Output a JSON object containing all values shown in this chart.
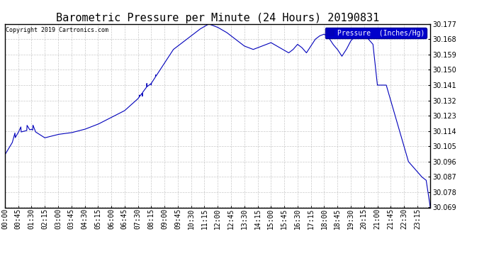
{
  "title": "Barometric Pressure per Minute (24 Hours) 20190831",
  "copyright_text": "Copyright 2019 Cartronics.com",
  "legend_label": "Pressure  (Inches/Hg)",
  "line_color": "#0000bb",
  "background_color": "#ffffff",
  "plot_bg_color": "#ffffff",
  "ylim": [
    30.069,
    30.177
  ],
  "yticks": [
    30.069,
    30.078,
    30.087,
    30.096,
    30.105,
    30.114,
    30.123,
    30.132,
    30.141,
    30.15,
    30.159,
    30.168,
    30.177
  ],
  "grid_color": "#bbbbbb",
  "title_fontsize": 11,
  "tick_fontsize": 7,
  "xtick_labels": [
    "00:00",
    "00:45",
    "01:30",
    "02:15",
    "03:00",
    "03:45",
    "04:30",
    "05:15",
    "06:00",
    "06:45",
    "07:30",
    "08:15",
    "09:00",
    "09:45",
    "10:30",
    "11:15",
    "12:00",
    "12:45",
    "13:30",
    "14:15",
    "15:00",
    "15:45",
    "16:30",
    "17:15",
    "18:00",
    "18:45",
    "19:30",
    "20:15",
    "21:00",
    "21:45",
    "22:30",
    "23:15"
  ],
  "keyframe_minutes": [
    0,
    45,
    90,
    135,
    180,
    225,
    270,
    315,
    360,
    405,
    450,
    480,
    495,
    510,
    525,
    540,
    555,
    570,
    600,
    630,
    660,
    690,
    720,
    750,
    765,
    780,
    810,
    840,
    870,
    900,
    930,
    960,
    975,
    990,
    1005,
    1020,
    1035,
    1050,
    1065,
    1080,
    1095,
    1110,
    1125,
    1140,
    1155,
    1170,
    1185,
    1200,
    1215,
    1230,
    1245,
    1260,
    1275,
    1290,
    1305,
    1320,
    1335,
    1350,
    1365,
    1380,
    1395,
    1410,
    1425,
    1439
  ],
  "keyframe_values": [
    30.1,
    30.113,
    30.115,
    30.11,
    30.112,
    30.113,
    30.115,
    30.118,
    30.122,
    30.126,
    30.133,
    30.14,
    30.142,
    30.146,
    30.15,
    30.154,
    30.158,
    30.162,
    30.166,
    30.17,
    30.174,
    30.177,
    30.175,
    30.172,
    30.17,
    30.168,
    30.164,
    30.162,
    30.164,
    30.166,
    30.163,
    30.16,
    30.162,
    30.165,
    30.163,
    30.16,
    30.164,
    30.168,
    30.17,
    30.171,
    30.169,
    30.165,
    30.162,
    30.158,
    30.162,
    30.167,
    30.17,
    30.172,
    30.17,
    30.168,
    30.165,
    30.141,
    30.141,
    30.141,
    30.132,
    30.123,
    30.114,
    30.105,
    30.096,
    30.093,
    30.09,
    30.087,
    30.085,
    30.069
  ]
}
